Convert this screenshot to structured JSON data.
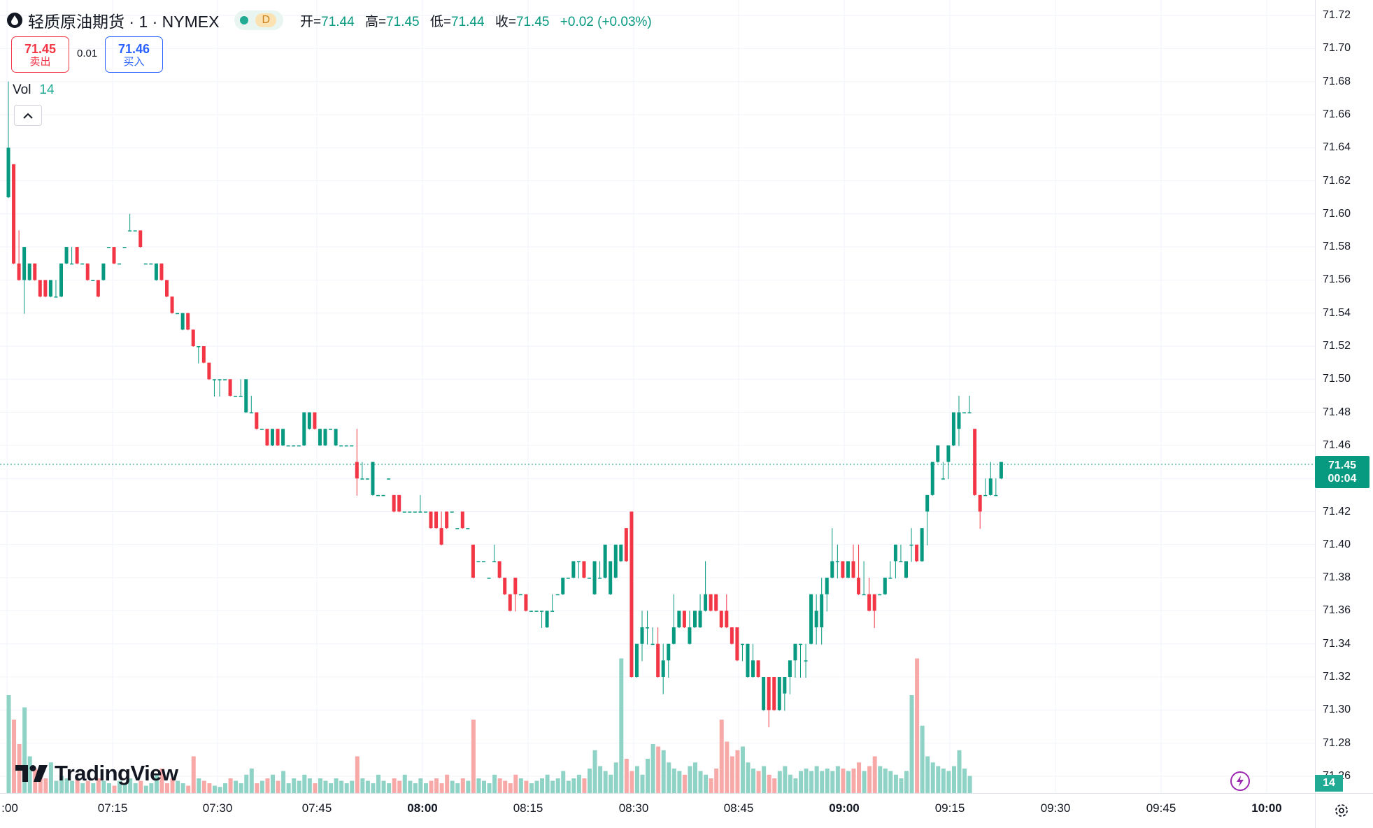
{
  "header": {
    "title": "轻质原油期货 · 1 · NYMEX",
    "interval_letter": "D",
    "ohlc": {
      "open_label": "开=",
      "open": "71.44",
      "high_label": "高=",
      "high": "71.45",
      "low_label": "低=",
      "low": "71.44",
      "close_label": "收=",
      "close": "71.45",
      "change": "+0.02 (+0.03%)"
    }
  },
  "trade": {
    "sell_price": "71.45",
    "sell_label": "卖出",
    "spread": "0.01",
    "buy_price": "71.46",
    "buy_label": "买入"
  },
  "volume": {
    "label": "Vol",
    "value": "14"
  },
  "price_axis": [
    "71.72",
    "71.70",
    "71.68",
    "71.66",
    "71.64",
    "71.62",
    "71.60",
    "71.58",
    "71.56",
    "71.54",
    "71.52",
    "71.50",
    "71.48",
    "71.46",
    "71.44",
    "71.42",
    "71.40",
    "71.38",
    "71.36",
    "71.34",
    "71.32",
    "71.30",
    "71.28",
    "71.26"
  ],
  "last_price": {
    "price": "71.45",
    "countdown": "00:04"
  },
  "volume_tag": "14",
  "time_axis": [
    ":00",
    "07:15",
    "07:30",
    "07:45",
    "08:00",
    "08:15",
    "08:30",
    "08:45",
    "09:00",
    "09:15",
    "09:30",
    "09:45",
    "10:00"
  ],
  "logo": "TradingView",
  "colors": {
    "up": "#089981",
    "down": "#f23645",
    "vol_up": "#8fd3c6",
    "vol_down": "#f7a9a7",
    "grid": "#f0f3fa"
  },
  "chart_data": {
    "type": "candlestick",
    "interval": "1",
    "ylim": [
      71.25,
      71.73
    ],
    "start_time": "07:00",
    "candles": [
      [
        71.61,
        71.68,
        71.61,
        71.64
      ],
      [
        71.63,
        71.63,
        71.57,
        71.57
      ],
      [
        71.57,
        71.59,
        71.56,
        71.56
      ],
      [
        71.56,
        71.58,
        71.54,
        71.58
      ],
      [
        71.56,
        71.57,
        71.56,
        71.57
      ],
      [
        71.57,
        71.57,
        71.56,
        71.56
      ],
      [
        71.56,
        71.56,
        71.55,
        71.55
      ],
      [
        71.56,
        71.56,
        71.55,
        71.55
      ],
      [
        71.55,
        71.56,
        71.55,
        71.56
      ],
      [
        71.55,
        71.56,
        71.55,
        71.55
      ],
      [
        71.55,
        71.57,
        71.55,
        71.57
      ],
      [
        71.57,
        71.58,
        71.57,
        71.58
      ],
      [
        71.57,
        71.58,
        71.57,
        71.57
      ],
      [
        71.58,
        71.58,
        71.57,
        71.57
      ],
      [
        71.57,
        71.57,
        71.57,
        71.57
      ],
      [
        71.57,
        71.57,
        71.56,
        71.56
      ],
      [
        71.56,
        71.56,
        71.56,
        71.56
      ],
      [
        71.56,
        71.56,
        71.55,
        71.55
      ],
      [
        71.56,
        71.57,
        71.56,
        71.57
      ],
      [
        71.58,
        71.58,
        71.58,
        71.58
      ],
      [
        71.58,
        71.58,
        71.57,
        71.57
      ],
      [
        71.57,
        71.57,
        71.57,
        71.57
      ],
      [
        71.58,
        71.58,
        71.58,
        71.58
      ],
      [
        71.59,
        71.6,
        71.59,
        71.59
      ],
      [
        71.59,
        71.59,
        71.59,
        71.59
      ],
      [
        71.59,
        71.59,
        71.58,
        71.58
      ],
      [
        71.57,
        71.57,
        71.57,
        71.57
      ],
      [
        71.57,
        71.57,
        71.57,
        71.57
      ],
      [
        71.56,
        71.57,
        71.56,
        71.57
      ],
      [
        71.57,
        71.57,
        71.56,
        71.56
      ],
      [
        71.56,
        71.56,
        71.55,
        71.55
      ],
      [
        71.55,
        71.55,
        71.54,
        71.54
      ],
      [
        71.54,
        71.54,
        71.54,
        71.54
      ],
      [
        71.53,
        71.54,
        71.53,
        71.54
      ],
      [
        71.54,
        71.54,
        71.53,
        71.53
      ],
      [
        71.53,
        71.53,
        71.52,
        71.52
      ],
      [
        71.52,
        71.52,
        71.51,
        71.52
      ],
      [
        71.52,
        71.52,
        71.51,
        71.51
      ],
      [
        71.51,
        71.51,
        71.5,
        71.5
      ],
      [
        71.5,
        71.5,
        71.49,
        71.5
      ],
      [
        71.5,
        71.5,
        71.49,
        71.5
      ],
      [
        71.5,
        71.5,
        71.5,
        71.5
      ],
      [
        71.5,
        71.5,
        71.49,
        71.49
      ],
      [
        71.49,
        71.49,
        71.49,
        71.49
      ],
      [
        71.49,
        71.5,
        71.49,
        71.49
      ],
      [
        71.48,
        71.5,
        71.48,
        71.5
      ],
      [
        71.48,
        71.49,
        71.48,
        71.48
      ],
      [
        71.48,
        71.48,
        71.47,
        71.47
      ],
      [
        71.47,
        71.47,
        71.47,
        71.47
      ],
      [
        71.47,
        71.47,
        71.46,
        71.46
      ],
      [
        71.46,
        71.47,
        71.46,
        71.47
      ],
      [
        71.47,
        71.47,
        71.46,
        71.46
      ],
      [
        71.46,
        71.47,
        71.46,
        71.47
      ],
      [
        71.46,
        71.46,
        71.46,
        71.46
      ],
      [
        71.46,
        71.46,
        71.46,
        71.46
      ],
      [
        71.46,
        71.46,
        71.46,
        71.46
      ],
      [
        71.46,
        71.48,
        71.46,
        71.48
      ],
      [
        71.47,
        71.48,
        71.47,
        71.48
      ],
      [
        71.48,
        71.48,
        71.47,
        71.47
      ],
      [
        71.46,
        71.47,
        71.46,
        71.47
      ],
      [
        71.46,
        71.47,
        71.46,
        71.47
      ],
      [
        71.47,
        71.47,
        71.47,
        71.47
      ],
      [
        71.46,
        71.47,
        71.46,
        71.47
      ],
      [
        71.46,
        71.46,
        71.46,
        71.46
      ],
      [
        71.46,
        71.46,
        71.46,
        71.46
      ],
      [
        71.46,
        71.46,
        71.46,
        71.46
      ],
      [
        71.45,
        71.47,
        71.43,
        71.44
      ],
      [
        71.44,
        71.45,
        71.44,
        71.44
      ],
      [
        71.44,
        71.44,
        71.44,
        71.44
      ],
      [
        71.43,
        71.45,
        71.43,
        71.45
      ],
      [
        71.43,
        71.43,
        71.43,
        71.43
      ],
      [
        71.43,
        71.43,
        71.43,
        71.43
      ],
      [
        71.44,
        71.44,
        71.44,
        71.44
      ],
      [
        71.43,
        71.43,
        71.42,
        71.42
      ],
      [
        71.43,
        71.43,
        71.42,
        71.42
      ],
      [
        71.42,
        71.42,
        71.42,
        71.42
      ],
      [
        71.42,
        71.42,
        71.42,
        71.42
      ],
      [
        71.42,
        71.42,
        71.42,
        71.42
      ],
      [
        71.42,
        71.43,
        71.42,
        71.42
      ],
      [
        71.42,
        71.42,
        71.42,
        71.42
      ],
      [
        71.42,
        71.42,
        71.41,
        71.41
      ],
      [
        71.42,
        71.42,
        71.41,
        71.41
      ],
      [
        71.41,
        71.42,
        71.4,
        71.4
      ],
      [
        71.42,
        71.42,
        71.41,
        71.41
      ],
      [
        71.42,
        71.42,
        71.42,
        71.42
      ],
      [
        71.41,
        71.41,
        71.41,
        71.41
      ],
      [
        71.42,
        71.42,
        71.41,
        71.41
      ],
      [
        71.41,
        71.41,
        71.41,
        71.41
      ],
      [
        71.4,
        71.4,
        71.38,
        71.38
      ],
      [
        71.39,
        71.39,
        71.39,
        71.39
      ],
      [
        71.39,
        71.39,
        71.39,
        71.39
      ],
      [
        71.38,
        71.38,
        71.38,
        71.38
      ],
      [
        71.39,
        71.4,
        71.39,
        71.39
      ],
      [
        71.39,
        71.39,
        71.38,
        71.38
      ],
      [
        71.38,
        71.38,
        71.37,
        71.37
      ],
      [
        71.37,
        71.37,
        71.36,
        71.36
      ],
      [
        71.38,
        71.38,
        71.36,
        71.37
      ],
      [
        71.37,
        71.37,
        71.37,
        71.37
      ],
      [
        71.37,
        71.37,
        71.36,
        71.36
      ],
      [
        71.36,
        71.36,
        71.36,
        71.36
      ],
      [
        71.36,
        71.36,
        71.36,
        71.36
      ],
      [
        71.36,
        71.36,
        71.35,
        71.36
      ],
      [
        71.35,
        71.36,
        71.35,
        71.36
      ],
      [
        71.36,
        71.37,
        71.36,
        71.36
      ],
      [
        71.37,
        71.37,
        71.37,
        71.37
      ],
      [
        71.37,
        71.38,
        71.37,
        71.38
      ],
      [
        71.38,
        71.38,
        71.38,
        71.38
      ],
      [
        71.38,
        71.39,
        71.38,
        71.39
      ],
      [
        71.39,
        71.39,
        71.38,
        71.39
      ],
      [
        71.39,
        71.39,
        71.38,
        71.38
      ],
      [
        71.38,
        71.38,
        71.38,
        71.38
      ],
      [
        71.37,
        71.39,
        71.37,
        71.39
      ],
      [
        71.38,
        71.39,
        71.38,
        71.38
      ],
      [
        71.38,
        71.4,
        71.38,
        71.4
      ],
      [
        71.37,
        71.39,
        71.37,
        71.39
      ],
      [
        71.38,
        71.4,
        71.38,
        71.4
      ],
      [
        71.39,
        71.4,
        71.39,
        71.4
      ],
      [
        71.41,
        71.41,
        71.39,
        71.39
      ],
      [
        71.42,
        71.42,
        71.32,
        71.32
      ],
      [
        71.32,
        71.34,
        71.32,
        71.34
      ],
      [
        71.34,
        71.36,
        71.33,
        71.35
      ],
      [
        71.35,
        71.36,
        71.34,
        71.35
      ],
      [
        71.34,
        71.35,
        71.34,
        71.34
      ],
      [
        71.34,
        71.35,
        71.32,
        71.32
      ],
      [
        71.32,
        71.34,
        71.31,
        71.33
      ],
      [
        71.33,
        71.34,
        71.32,
        71.34
      ],
      [
        71.34,
        71.37,
        71.34,
        71.35
      ],
      [
        71.35,
        71.36,
        71.35,
        71.36
      ],
      [
        71.36,
        71.36,
        71.35,
        71.35
      ],
      [
        71.34,
        71.36,
        71.34,
        71.35
      ],
      [
        71.35,
        71.36,
        71.35,
        71.36
      ],
      [
        71.35,
        71.37,
        71.35,
        71.36
      ],
      [
        71.36,
        71.39,
        71.36,
        71.37
      ],
      [
        71.37,
        71.37,
        71.36,
        71.36
      ],
      [
        71.37,
        71.37,
        71.36,
        71.36
      ],
      [
        71.36,
        71.36,
        71.35,
        71.35
      ],
      [
        71.36,
        71.37,
        71.35,
        71.35
      ],
      [
        71.35,
        71.35,
        71.34,
        71.34
      ],
      [
        71.35,
        71.35,
        71.33,
        71.33
      ],
      [
        71.34,
        71.34,
        71.33,
        71.34
      ],
      [
        71.32,
        71.34,
        71.32,
        71.34
      ],
      [
        71.32,
        71.34,
        71.32,
        71.33
      ],
      [
        71.33,
        71.33,
        71.32,
        71.32
      ],
      [
        71.3,
        71.32,
        71.3,
        71.32
      ],
      [
        71.32,
        71.32,
        71.29,
        71.3
      ],
      [
        71.32,
        71.32,
        71.3,
        71.3
      ],
      [
        71.3,
        71.32,
        71.3,
        71.32
      ],
      [
        71.31,
        71.32,
        71.3,
        71.32
      ],
      [
        71.32,
        71.33,
        71.31,
        71.33
      ],
      [
        71.33,
        71.34,
        71.32,
        71.34
      ],
      [
        71.34,
        71.34,
        71.32,
        71.34
      ],
      [
        71.33,
        71.34,
        71.32,
        71.33
      ],
      [
        71.34,
        71.37,
        71.34,
        71.37
      ],
      [
        71.35,
        71.37,
        71.34,
        71.36
      ],
      [
        71.35,
        71.38,
        71.34,
        71.37
      ],
      [
        71.37,
        71.38,
        71.36,
        71.38
      ],
      [
        71.38,
        71.41,
        71.38,
        71.39
      ],
      [
        71.39,
        71.4,
        71.38,
        71.39
      ],
      [
        71.39,
        71.39,
        71.38,
        71.38
      ],
      [
        71.38,
        71.39,
        71.38,
        71.39
      ],
      [
        71.39,
        71.4,
        71.38,
        71.38
      ],
      [
        71.38,
        71.4,
        71.37,
        71.37
      ],
      [
        71.37,
        71.39,
        71.37,
        71.37
      ],
      [
        71.37,
        71.38,
        71.36,
        71.36
      ],
      [
        71.37,
        71.37,
        71.35,
        71.36
      ],
      [
        71.37,
        71.37,
        71.37,
        71.37
      ],
      [
        71.37,
        71.38,
        71.37,
        71.38
      ],
      [
        71.38,
        71.39,
        71.38,
        71.38
      ],
      [
        71.39,
        71.4,
        71.38,
        71.4
      ],
      [
        71.39,
        71.4,
        71.39,
        71.39
      ],
      [
        71.38,
        71.39,
        71.38,
        71.39
      ],
      [
        71.4,
        71.41,
        71.39,
        71.4
      ],
      [
        71.4,
        71.4,
        71.39,
        71.39
      ],
      [
        71.39,
        71.41,
        71.39,
        71.41
      ],
      [
        71.42,
        71.43,
        71.4,
        71.43
      ],
      [
        71.43,
        71.45,
        71.43,
        71.45
      ],
      [
        71.45,
        71.46,
        71.45,
        71.46
      ],
      [
        71.44,
        71.45,
        71.44,
        71.44
      ],
      [
        71.45,
        71.46,
        71.44,
        71.46
      ],
      [
        71.46,
        71.48,
        71.46,
        71.48
      ],
      [
        71.47,
        71.49,
        71.46,
        71.48
      ],
      [
        71.48,
        71.48,
        71.48,
        71.48
      ],
      [
        71.48,
        71.49,
        71.48,
        71.48
      ],
      [
        71.47,
        71.47,
        71.43,
        71.43
      ],
      [
        71.43,
        71.43,
        71.41,
        71.42
      ],
      [
        71.43,
        71.44,
        71.43,
        71.43
      ],
      [
        71.43,
        71.45,
        71.43,
        71.44
      ],
      [
        71.43,
        71.44,
        71.43,
        71.43
      ],
      [
        71.44,
        71.45,
        71.44,
        71.45
      ]
    ],
    "volumes": [
      80,
      60,
      40,
      70,
      30,
      20,
      15,
      12,
      25,
      10,
      14,
      12,
      10,
      12,
      8,
      10,
      8,
      12,
      10,
      8,
      6,
      10,
      8,
      12,
      8,
      10,
      6,
      8,
      15,
      20,
      8,
      12,
      10,
      8,
      6,
      30,
      12,
      10,
      8,
      6,
      5,
      8,
      12,
      10,
      8,
      15,
      20,
      8,
      10,
      12,
      15,
      10,
      18,
      8,
      12,
      10,
      15,
      12,
      8,
      12,
      10,
      8,
      12,
      10,
      8,
      10,
      30,
      12,
      10,
      8,
      15,
      10,
      8,
      12,
      10,
      15,
      10,
      8,
      12,
      8,
      10,
      12,
      8,
      15,
      10,
      8,
      12,
      10,
      60,
      12,
      10,
      8,
      15,
      12,
      10,
      8,
      15,
      12,
      10,
      8,
      10,
      12,
      15,
      10,
      12,
      18,
      10,
      12,
      15,
      12,
      20,
      35,
      22,
      18,
      15,
      25,
      110,
      28,
      18,
      22,
      15,
      28,
      40,
      38,
      35,
      25,
      20,
      18,
      15,
      22,
      25,
      18,
      15,
      12,
      20,
      60,
      42,
      30,
      35,
      38,
      25,
      20,
      18,
      22,
      15,
      12,
      18,
      22,
      15,
      12,
      18,
      20,
      18,
      22,
      18,
      20,
      18,
      22,
      20,
      18,
      20,
      25,
      18,
      22,
      30,
      22,
      20,
      18,
      15,
      12,
      18,
      80,
      110,
      55,
      30,
      25,
      22,
      20,
      18,
      22,
      35,
      20,
      14
    ],
    "volume_max": 120
  }
}
